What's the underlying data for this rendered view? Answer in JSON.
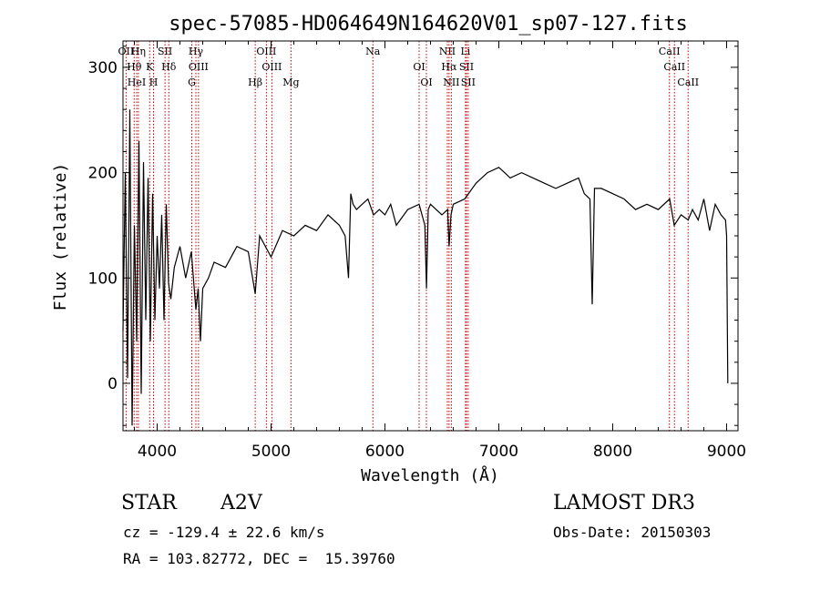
{
  "chart_data": {
    "type": "line",
    "title": "spec-57085-HD064649N164620V01_sp07-127.fits",
    "xlabel": "Wavelength (Å)",
    "ylabel": "Flux (relative)",
    "xlim": [
      3700,
      9100
    ],
    "ylim": [
      -45,
      325
    ],
    "xticks": [
      4000,
      5000,
      6000,
      7000,
      8000,
      9000
    ],
    "yticks": [
      0,
      100,
      200,
      300
    ],
    "grid": false,
    "series": [
      {
        "x": [
          3700,
          3720,
          3740,
          3760,
          3780,
          3800,
          3820,
          3840,
          3860,
          3880,
          3900,
          3920,
          3940,
          3960,
          3980,
          4000,
          4020,
          4040,
          4060,
          4080,
          4100,
          4120,
          4150,
          4200,
          4250,
          4300,
          4340,
          4360,
          4380,
          4400,
          4450,
          4500,
          4600,
          4700,
          4800,
          4861,
          4900,
          5000,
          5100,
          5200,
          5300,
          5400,
          5500,
          5600,
          5650,
          5680,
          5700,
          5720,
          5750,
          5800,
          5850,
          5900,
          5950,
          6000,
          6050,
          6100,
          6200,
          6300,
          6350,
          6365,
          6380,
          6400,
          6500,
          6550,
          6563,
          6580,
          6600,
          6700,
          6800,
          6900,
          7000,
          7050,
          7100,
          7200,
          7300,
          7400,
          7500,
          7600,
          7700,
          7750,
          7800,
          7820,
          7840,
          7900,
          8000,
          8100,
          8200,
          8300,
          8400,
          8500,
          8540,
          8600,
          8662,
          8700,
          8750,
          8800,
          8850,
          8900,
          8950,
          8990,
          9000,
          9010
        ],
        "y": [
          50,
          200,
          5,
          260,
          -40,
          150,
          40,
          230,
          -10,
          210,
          60,
          195,
          40,
          180,
          60,
          140,
          90,
          160,
          60,
          170,
          95,
          80,
          110,
          130,
          100,
          125,
          70,
          90,
          40,
          90,
          100,
          115,
          110,
          130,
          125,
          85,
          140,
          120,
          145,
          140,
          150,
          145,
          160,
          150,
          140,
          100,
          180,
          170,
          165,
          170,
          175,
          160,
          165,
          160,
          170,
          150,
          165,
          170,
          150,
          90,
          165,
          170,
          160,
          165,
          130,
          160,
          170,
          175,
          190,
          200,
          205,
          200,
          195,
          200,
          195,
          190,
          185,
          190,
          195,
          180,
          175,
          75,
          185,
          185,
          180,
          175,
          165,
          170,
          165,
          175,
          150,
          160,
          155,
          165,
          155,
          175,
          145,
          170,
          160,
          155,
          140,
          0
        ]
      }
    ],
    "lines": [
      {
        "label": "OII",
        "x": 3727
      },
      {
        "label": "Hθ",
        "x": 3798
      },
      {
        "label": "HeI",
        "x": 3820
      },
      {
        "label": "Hη",
        "x": 3835
      },
      {
        "label": "K",
        "x": 3934
      },
      {
        "label": "H",
        "x": 3968
      },
      {
        "label": "SII",
        "x": 4069
      },
      {
        "label": "Hδ",
        "x": 4102
      },
      {
        "label": "G",
        "x": 4304
      },
      {
        "label": "Hγ",
        "x": 4340
      },
      {
        "label": "OIII",
        "x": 4363
      },
      {
        "label": "Hβ",
        "x": 4861
      },
      {
        "label": "OIII",
        "x": 4959
      },
      {
        "label": "OIII",
        "x": 5007
      },
      {
        "label": "Mg",
        "x": 5175
      },
      {
        "label": "Na",
        "x": 5894
      },
      {
        "label": "OI",
        "x": 6300
      },
      {
        "label": "OI",
        "x": 6364
      },
      {
        "label": "NII",
        "x": 6548
      },
      {
        "label": "Hα",
        "x": 6563
      },
      {
        "label": "NII",
        "x": 6583
      },
      {
        "label": "Li",
        "x": 6707
      },
      {
        "label": "SII",
        "x": 6716
      },
      {
        "label": "SII",
        "x": 6731
      },
      {
        "label": "CaII",
        "x": 8498
      },
      {
        "label": "CaII",
        "x": 8542
      },
      {
        "label": "CaII",
        "x": 8662
      }
    ]
  },
  "info": {
    "obj_class": "STAR",
    "subclass": "A2V",
    "survey": "LAMOST DR3",
    "cz": "cz = -129.4 ± 22.6 km/s",
    "obs_date": "Obs-Date: 20150303",
    "coords": "RA = 103.82772, DEC =  15.39760"
  }
}
